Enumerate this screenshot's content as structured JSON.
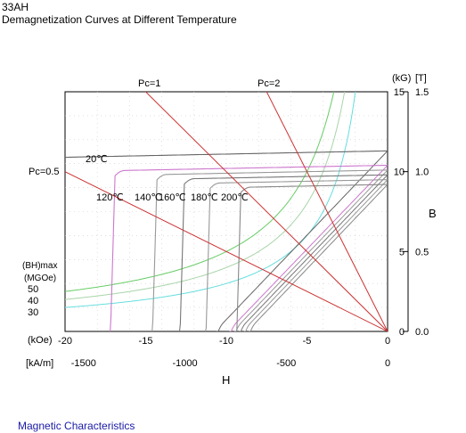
{
  "header": {
    "grade": "33AH",
    "title": "Demagnetization Curves at Different Temperature"
  },
  "footer": {
    "link": "Magnetic Characteristics"
  },
  "chart_data": {
    "type": "line",
    "title": "Demagnetization Curves at Different Temperature",
    "x_axis": {
      "label": "H",
      "range_kOe": [
        -20,
        0
      ],
      "ticks_kOe": [
        "-20",
        "-15",
        "-10",
        "-5",
        "0"
      ],
      "unit_kOe": "(kOe)",
      "unit_kAm": "[kA/m]",
      "ticks_kAm": [
        {
          "label": "-1500",
          "value": -1500
        },
        {
          "label": "-1000",
          "value": -1000
        },
        {
          "label": "-500",
          "value": -500
        },
        {
          "label": "0",
          "value": 0
        }
      ]
    },
    "y_axis": {
      "label": "B",
      "range_kG": [
        0,
        15
      ],
      "unit_kG": "(kG)",
      "unit_T": "[T]",
      "ticks_kG": [
        "0",
        "5",
        "10",
        "15"
      ],
      "ticks_T": [
        "0.0",
        "0.5",
        "1.0",
        "1.5"
      ]
    },
    "grid": true,
    "bhmax_labels": {
      "title": "(BH)max",
      "unit": "(MGOe)",
      "values": [
        "50",
        "40",
        "30"
      ]
    },
    "bhmax_curves": [
      {
        "value": 50,
        "color": "#66cc66"
      },
      {
        "value": 40,
        "color": "#a8d4a8"
      },
      {
        "value": 30,
        "color": "#66dddd"
      }
    ],
    "load_lines": [
      {
        "label": "Pc=0.5",
        "pc": 0.5,
        "color": "#cc3333"
      },
      {
        "label": "Pc=1",
        "pc": 1,
        "color": "#cc3333"
      },
      {
        "label": "Pc=2",
        "pc": 2,
        "color": "#cc3333"
      }
    ],
    "series": [
      {
        "name": "20℃",
        "br": 11.3,
        "hcj": -21.5,
        "hk": -21.5,
        "bnorm": -10.7,
        "color": "#666666"
      },
      {
        "name": "120℃",
        "br": 10.4,
        "hcj": -17.2,
        "hk": -16.9,
        "bnorm": -9.9,
        "color": "#cc77cc"
      },
      {
        "name": "140℃",
        "br": 10.1,
        "hcj": -14.6,
        "hk": -14.3,
        "bnorm": -9.6,
        "color": "#999999"
      },
      {
        "name": "160℃",
        "br": 9.8,
        "hcj": -12.9,
        "hk": -12.6,
        "bnorm": -9.3,
        "color": "#777777"
      },
      {
        "name": "180℃",
        "br": 9.5,
        "hcj": -11.3,
        "hk": -11.0,
        "bnorm": -9.0,
        "color": "#999999"
      },
      {
        "name": "200℃",
        "br": 9.2,
        "hcj": -9.4,
        "hk": -9.1,
        "bnorm": -8.7,
        "color": "#888888"
      }
    ]
  }
}
